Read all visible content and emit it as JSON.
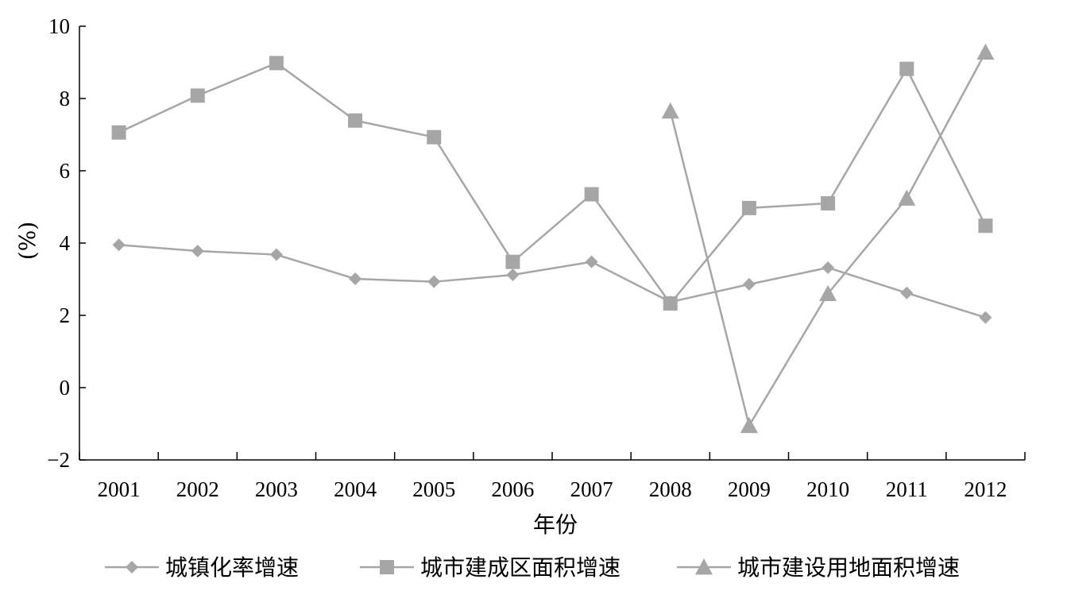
{
  "chart_data": {
    "type": "line",
    "categories": [
      "2001",
      "2002",
      "2003",
      "2004",
      "2005",
      "2006",
      "2007",
      "2008",
      "2009",
      "2010",
      "2011",
      "2012"
    ],
    "xlabel": "年份",
    "ylabel": "(%)",
    "ylim": [
      -2,
      10
    ],
    "yticks": [
      -2,
      0,
      2,
      4,
      6,
      8,
      10
    ],
    "ytick_labels": [
      "−2",
      "0",
      "2",
      "4",
      "6",
      "8",
      "10"
    ],
    "grid": false,
    "legend_position": "bottom",
    "series": [
      {
        "name": "城镇化率增速",
        "marker": "diamond",
        "color": "#a6a6a6",
        "values": [
          3.95,
          3.78,
          3.68,
          3.01,
          2.93,
          3.12,
          3.48,
          2.37,
          2.86,
          3.32,
          2.62,
          1.94
        ]
      },
      {
        "name": "城市建成区面积增速",
        "marker": "square",
        "color": "#a6a6a6",
        "values": [
          7.06,
          8.08,
          8.98,
          7.39,
          6.93,
          3.48,
          5.35,
          2.33,
          4.97,
          5.1,
          8.82,
          4.48
        ]
      },
      {
        "name": "城市建设用地面积增速",
        "marker": "triangle",
        "color": "#a6a6a6",
        "values": [
          null,
          null,
          null,
          null,
          null,
          null,
          null,
          7.65,
          -1.05,
          2.6,
          5.24,
          9.28
        ]
      }
    ]
  }
}
